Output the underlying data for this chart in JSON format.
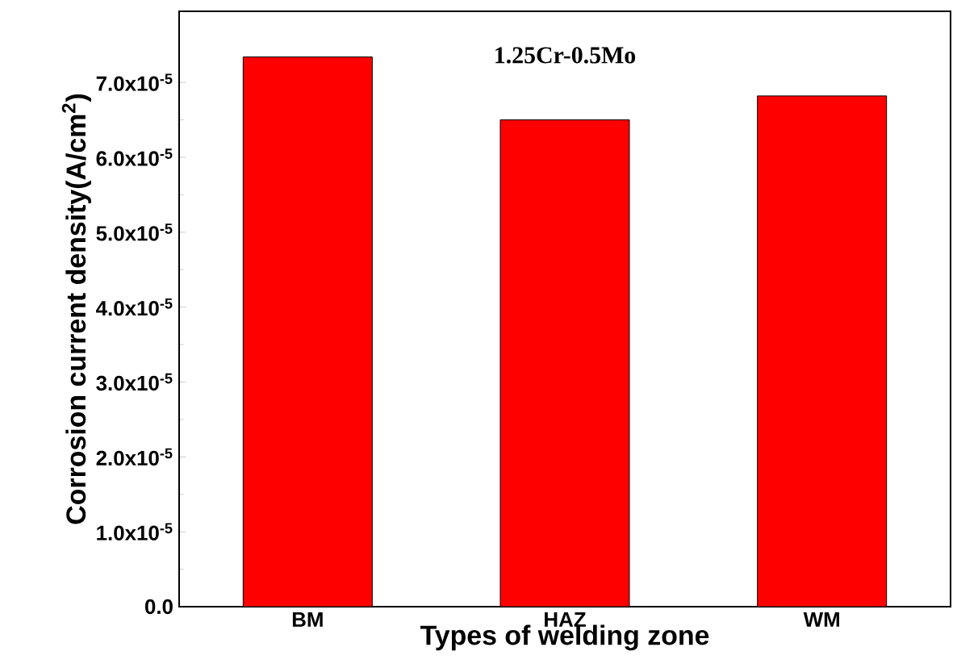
{
  "chart_data": {
    "type": "bar",
    "title": "1.25Cr-0.5Mo",
    "xlabel": "Types of welding zone",
    "ylabel": "Corrosion current density(A/cm$^{2}$)",
    "categories": [
      "BM",
      "HAZ",
      "WM"
    ],
    "values": [
      7.34e-05,
      6.5e-05,
      6.82e-05
    ],
    "color": "#ff0000",
    "ylim": [
      0,
      7.95e-05
    ],
    "yticks": [
      {
        "value": 0,
        "label": "0.0"
      },
      {
        "value": 1e-05,
        "label": "1.0x10$^{-5}$"
      },
      {
        "value": 2e-05,
        "label": "2.0x10$^{-5}$"
      },
      {
        "value": 3e-05,
        "label": "3.0x10$^{-5}$"
      },
      {
        "value": 4e-05,
        "label": "4.0x10$^{-5}$"
      },
      {
        "value": 5e-05,
        "label": "5.0x10$^{-5}$"
      },
      {
        "value": 6e-05,
        "label": "6.0x10$^{-5}$"
      },
      {
        "value": 7e-05,
        "label": "7.0x10$^{-5}$"
      }
    ],
    "grid": false
  }
}
